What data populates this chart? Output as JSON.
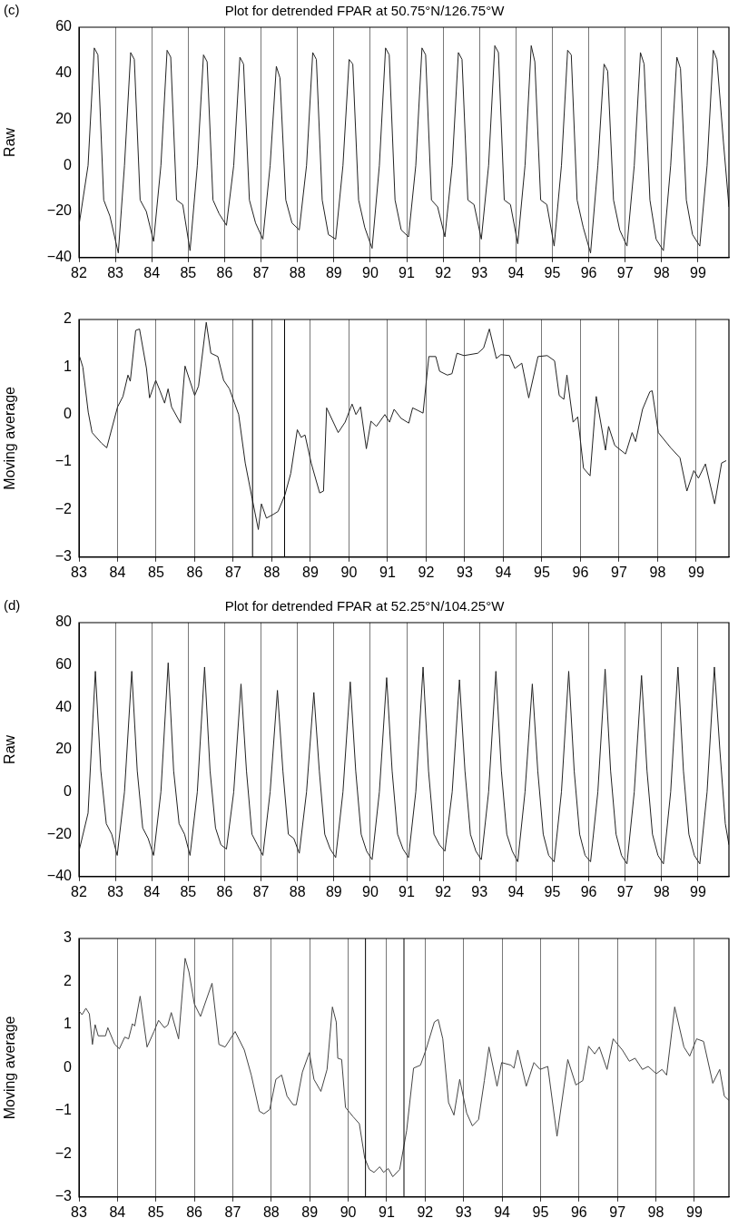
{
  "chart_data": [
    {
      "type": "line",
      "title": "Plot for detrended FPAR at 50.75°N/126.75°W",
      "ylabel": "Raw",
      "annotations": [
        "(c)"
      ],
      "xlim": [
        82,
        99.85
      ],
      "xticks": [
        82,
        83,
        84,
        85,
        86,
        87,
        88,
        89,
        90,
        91,
        92,
        93,
        94,
        95,
        96,
        97,
        98,
        99
      ],
      "ylim": [
        -40,
        60
      ],
      "yticks": [
        {
          "value": -40,
          "label": "−40"
        },
        {
          "value": -20,
          "label": "−20"
        },
        0,
        20,
        40,
        60
      ],
      "grid": "x",
      "legend": false,
      "series": [
        {
          "color": "#222222",
          "x": [
            82,
            82.25,
            82.42,
            82.52,
            82.68,
            82.85,
            83.08,
            83.25,
            83.42,
            83.52,
            83.68,
            83.85,
            84.05,
            84.25,
            84.42,
            84.52,
            84.68,
            84.85,
            85.05,
            85.25,
            85.42,
            85.52,
            85.68,
            85.85,
            86.05,
            86.25,
            86.42,
            86.52,
            86.68,
            86.85,
            87.05,
            87.25,
            87.42,
            87.52,
            87.68,
            87.85,
            88.05,
            88.25,
            88.42,
            88.52,
            88.68,
            88.85,
            89.05,
            89.25,
            89.42,
            89.52,
            89.68,
            89.85,
            90.05,
            90.25,
            90.42,
            90.52,
            90.68,
            90.85,
            91.05,
            91.25,
            91.42,
            91.52,
            91.68,
            91.85,
            92.05,
            92.25,
            92.42,
            92.52,
            92.68,
            92.85,
            93.05,
            93.25,
            93.42,
            93.52,
            93.68,
            93.85,
            94.05,
            94.25,
            94.42,
            94.52,
            94.68,
            94.85,
            95.05,
            95.25,
            95.42,
            95.52,
            95.68,
            95.85,
            96.05,
            96.25,
            96.42,
            96.52,
            96.68,
            96.85,
            97.05,
            97.25,
            97.42,
            97.52,
            97.68,
            97.85,
            98.05,
            98.25,
            98.42,
            98.52,
            98.68,
            98.85,
            99.05,
            99.25,
            99.42,
            99.52,
            99.7,
            99.85
          ],
          "values": [
            -26,
            0,
            51,
            48,
            -15,
            -22,
            -38,
            0,
            49,
            46,
            -15,
            -20,
            -33,
            0,
            50,
            47,
            -15,
            -17,
            -37,
            0,
            48,
            45,
            -15,
            -21,
            -26,
            0,
            47,
            44,
            -15,
            -25,
            -32,
            0,
            43,
            38,
            -15,
            -25,
            -28,
            0,
            49,
            46,
            -15,
            -30,
            -32,
            0,
            46,
            44,
            -15,
            -27,
            -36,
            0,
            51,
            48,
            -15,
            -28,
            -31,
            0,
            51,
            48,
            -15,
            -18,
            -31,
            0,
            49,
            46,
            -15,
            -17,
            -32,
            0,
            52,
            49,
            -15,
            -17,
            -34,
            0,
            52,
            45,
            -15,
            -17,
            -35,
            0,
            50,
            48,
            -15,
            -27,
            -38,
            0,
            44,
            41,
            -15,
            -28,
            -35,
            0,
            49,
            44,
            -15,
            -32,
            -37,
            0,
            47,
            42,
            -15,
            -30,
            -35,
            0,
            50,
            46,
            10,
            -18
          ]
        }
      ]
    },
    {
      "type": "line",
      "ylabel": "Moving average",
      "xlim": [
        83,
        99.85
      ],
      "xticks": [
        83,
        84,
        85,
        86,
        87,
        88,
        89,
        90,
        91,
        92,
        93,
        94,
        95,
        96,
        97,
        98,
        99
      ],
      "ylim": [
        -3,
        2
      ],
      "yticks": [
        {
          "value": -3,
          "label": "−3"
        },
        {
          "value": -2,
          "label": "−2"
        },
        {
          "value": -1,
          "label": "−1"
        },
        0,
        1,
        2
      ],
      "grid": "x",
      "legend": false,
      "ref_lines": [
        {
          "axis": "x",
          "value": 87.5,
          "color": "#000000"
        },
        {
          "axis": "x",
          "value": 88.33,
          "color": "#000000"
        }
      ],
      "series": [
        {
          "color": "#222222",
          "x": [
            83,
            83.1,
            83.24,
            83.34,
            83.58,
            83.72,
            84,
            84.14,
            84.27,
            84.33,
            84.47,
            84.57,
            84.75,
            84.83,
            84.99,
            85.1,
            85.22,
            85.31,
            85.4,
            85.63,
            85.75,
            86,
            86.1,
            86.3,
            86.42,
            86.6,
            86.75,
            86.9,
            87.14,
            87.31,
            87.49,
            87.65,
            87.73,
            87.86,
            88.04,
            88.16,
            88.34,
            88.49,
            88.66,
            88.76,
            88.86,
            89.02,
            89.24,
            89.34,
            89.42,
            89.72,
            89.9,
            90.08,
            90.18,
            90.3,
            90.45,
            90.57,
            90.71,
            90.93,
            91.05,
            91.17,
            91.35,
            91.55,
            91.65,
            91.8,
            91.92,
            92.07,
            92.25,
            92.35,
            92.55,
            92.67,
            92.8,
            92.98,
            93.34,
            93.49,
            93.64,
            93.82,
            93.94,
            94.16,
            94.3,
            94.48,
            94.66,
            94.9,
            95.14,
            95.33,
            95.45,
            95.57,
            95.65,
            95.81,
            95.93,
            96.08,
            96.25,
            96.41,
            96.65,
            96.73,
            96.89,
            97.17,
            97.34,
            97.43,
            97.61,
            97.8,
            97.86,
            98.02,
            98.34,
            98.58,
            98.76,
            98.94,
            99.06,
            99.24,
            99.48,
            99.66,
            99.78
          ],
          "values": [
            1.26,
            1,
            0.05,
            -0.38,
            -0.6,
            -0.7,
            0.16,
            0.38,
            0.83,
            0.7,
            1.77,
            1.8,
            0.97,
            0.35,
            0.72,
            0.5,
            0.24,
            0.54,
            0.16,
            -0.18,
            1.02,
            0.4,
            0.6,
            1.94,
            1.29,
            1.22,
            0.72,
            0.54,
            0,
            -1.02,
            -1.77,
            -2.42,
            -1.88,
            -2.18,
            -2.1,
            -2.04,
            -1.69,
            -1.24,
            -0.32,
            -0.48,
            -0.43,
            -1.02,
            -1.65,
            -1.61,
            0.14,
            -0.38,
            -0.16,
            0.22,
            0,
            0.16,
            -0.72,
            -0.14,
            -0.25,
            0,
            -0.16,
            0.11,
            -0.08,
            -0.18,
            0.14,
            0.08,
            0.03,
            1.22,
            1.22,
            0.91,
            0.83,
            0.86,
            1.29,
            1.24,
            1.29,
            1.4,
            1.8,
            1.18,
            1.26,
            1.24,
            0.97,
            1.08,
            0.35,
            1.22,
            1.24,
            1.13,
            0.4,
            0.32,
            0.83,
            -0.16,
            -0.05,
            -1.13,
            -1.29,
            0.38,
            -0.75,
            -0.25,
            -0.65,
            -0.83,
            -0.38,
            -0.57,
            0.11,
            0.48,
            0.5,
            -0.38,
            -0.7,
            -0.91,
            -1.61,
            -1.18,
            -1.34,
            -1.04,
            -1.88,
            -1.02,
            -0.97
          ]
        }
      ]
    },
    {
      "type": "line",
      "title": "Plot for detrended FPAR at 52.25°N/104.25°W",
      "ylabel": "Raw",
      "annotations": [
        "(d)"
      ],
      "xlim": [
        82,
        99.85
      ],
      "xticks": [
        82,
        83,
        84,
        85,
        86,
        87,
        88,
        89,
        90,
        91,
        92,
        93,
        94,
        95,
        96,
        97,
        98,
        99
      ],
      "ylim": [
        -40,
        80
      ],
      "yticks": [
        {
          "value": -40,
          "label": "−40"
        },
        {
          "value": -20,
          "label": "−20"
        },
        0,
        20,
        40,
        60,
        80
      ],
      "grid": "x",
      "legend": false,
      "series": [
        {
          "color": "#222222",
          "x": [
            82,
            82.25,
            82.45,
            82.6,
            82.75,
            82.9,
            83.05,
            83.25,
            83.45,
            83.6,
            83.75,
            83.9,
            84.05,
            84.25,
            84.45,
            84.6,
            84.75,
            84.9,
            85.05,
            85.25,
            85.45,
            85.6,
            85.75,
            85.9,
            86.05,
            86.25,
            86.45,
            86.6,
            86.75,
            86.9,
            87.05,
            87.25,
            87.45,
            87.6,
            87.75,
            87.9,
            88.05,
            88.25,
            88.45,
            88.6,
            88.75,
            88.9,
            89.05,
            89.25,
            89.45,
            89.6,
            89.75,
            89.9,
            90.05,
            90.25,
            90.45,
            90.6,
            90.75,
            90.9,
            91.05,
            91.25,
            91.45,
            91.6,
            91.75,
            91.9,
            92.05,
            92.25,
            92.45,
            92.6,
            92.75,
            92.9,
            93.05,
            93.25,
            93.45,
            93.6,
            93.75,
            93.9,
            94.05,
            94.25,
            94.45,
            94.6,
            94.75,
            94.9,
            95.05,
            95.25,
            95.45,
            95.6,
            95.75,
            95.9,
            96.05,
            96.25,
            96.45,
            96.6,
            96.75,
            96.9,
            97.05,
            97.25,
            97.45,
            97.6,
            97.75,
            97.9,
            98.05,
            98.25,
            98.45,
            98.6,
            98.75,
            98.9,
            99.05,
            99.25,
            99.45,
            99.6,
            99.75,
            99.85
          ],
          "values": [
            -28,
            -10,
            57,
            10,
            -15,
            -20,
            -30,
            0,
            57,
            10,
            -17,
            -22,
            -30,
            0,
            61,
            10,
            -15,
            -20,
            -30,
            0,
            59,
            10,
            -17,
            -25,
            -27,
            0,
            51,
            10,
            -20,
            -25,
            -30,
            0,
            48,
            10,
            -20,
            -22,
            -29,
            0,
            47,
            10,
            -20,
            -27,
            -31,
            0,
            52,
            10,
            -20,
            -28,
            -32,
            0,
            54,
            10,
            -20,
            -27,
            -31,
            0,
            59,
            10,
            -20,
            -25,
            -28,
            0,
            53,
            10,
            -20,
            -28,
            -32,
            0,
            57,
            10,
            -20,
            -28,
            -33,
            0,
            51,
            10,
            -20,
            -30,
            -33,
            0,
            57,
            10,
            -20,
            -30,
            -33,
            0,
            58,
            10,
            -20,
            -30,
            -34,
            0,
            55,
            10,
            -20,
            -30,
            -34,
            0,
            59,
            10,
            -20,
            -30,
            -34,
            0,
            59,
            20,
            -15,
            -25
          ]
        }
      ]
    },
    {
      "type": "line",
      "ylabel": "Moving average",
      "xlim": [
        83,
        99.9
      ],
      "xticks": [
        83,
        84,
        85,
        86,
        87,
        88,
        89,
        90,
        91,
        92,
        93,
        94,
        95,
        96,
        97,
        98,
        99
      ],
      "ylim": [
        -3,
        3
      ],
      "yticks": [
        {
          "value": -3,
          "label": "−3"
        },
        {
          "value": -2,
          "label": "−2"
        },
        {
          "value": -1,
          "label": "−1"
        },
        0,
        1,
        2,
        3
      ],
      "grid": "x",
      "legend": false,
      "ref_lines": [
        {
          "axis": "x",
          "value": 90.45,
          "color": "#000000"
        },
        {
          "axis": "x",
          "value": 91.45,
          "color": "#000000"
        }
      ],
      "series": [
        {
          "color": "#444444",
          "x": [
            83,
            83.08,
            83.18,
            83.27,
            83.35,
            83.42,
            83.5,
            83.69,
            83.75,
            83.93,
            84.05,
            84.19,
            84.29,
            84.39,
            84.45,
            84.59,
            84.77,
            84.95,
            85.07,
            85.22,
            85.31,
            85.4,
            85.59,
            85.76,
            85.86,
            86,
            86.16,
            86.46,
            86.64,
            86.8,
            87.06,
            87.3,
            87.48,
            87.69,
            87.81,
            87.96,
            88.12,
            88.27,
            88.41,
            88.57,
            88.65,
            88.81,
            88.99,
            89.11,
            89.29,
            89.45,
            89.59,
            89.69,
            89.73,
            89.83,
            89.93,
            90.13,
            90.29,
            90.43,
            90.55,
            90.67,
            90.82,
            90.92,
            91.04,
            91.16,
            91.34,
            91.52,
            91.7,
            91.88,
            92.02,
            92.24,
            92.34,
            92.46,
            92.61,
            92.75,
            92.9,
            93.08,
            93.23,
            93.39,
            93.54,
            93.66,
            93.87,
            93.99,
            94.23,
            94.31,
            94.41,
            94.63,
            94.83,
            94.99,
            95.19,
            95.43,
            95.71,
            95.92,
            96.1,
            96.25,
            96.41,
            96.53,
            96.73,
            96.89,
            97.13,
            97.31,
            97.46,
            97.65,
            97.8,
            98.01,
            98.16,
            98.28,
            98.49,
            98.73,
            98.88,
            99.06,
            99.24,
            99.48,
            99.66,
            99.78,
            99.89
          ],
          "values": [
            1.32,
            1.23,
            1.38,
            1.25,
            0.54,
            1,
            0.74,
            0.74,
            0.93,
            0.54,
            0.44,
            0.71,
            0.67,
            1.02,
            0.97,
            1.66,
            0.48,
            0.84,
            1.1,
            0.93,
            0.99,
            1.28,
            0.67,
            2.54,
            2.22,
            1.48,
            1.19,
            1.96,
            0.54,
            0.48,
            0.84,
            0.41,
            -0.17,
            -1.01,
            -1.07,
            -0.97,
            -0.27,
            -0.17,
            -0.66,
            -0.86,
            -0.86,
            -0.1,
            0.35,
            -0.27,
            -0.55,
            -0.04,
            1.41,
            1.06,
            0.22,
            0.19,
            -0.92,
            -1.14,
            -1.3,
            -2.1,
            -2.36,
            -2.43,
            -2.3,
            -2.43,
            -2.34,
            -2.53,
            -2.36,
            -1.46,
            -0.01,
            0.06,
            0.41,
            1.06,
            1.12,
            0.67,
            -0.81,
            -1.1,
            -0.27,
            -1.05,
            -1.35,
            -1.2,
            -0.3,
            0.48,
            -0.43,
            0.12,
            0.06,
            -0.01,
            0.41,
            -0.43,
            0.12,
            -0.04,
            0.03,
            -1.59,
            0.19,
            -0.4,
            -0.3,
            0.5,
            0.32,
            0.48,
            -0.04,
            0.67,
            0.41,
            0.15,
            0.22,
            -0.04,
            0.03,
            -0.14,
            -0.04,
            -0.17,
            1.41,
            0.48,
            0.27,
            0.67,
            0.61,
            -0.36,
            -0.04,
            -0.66,
            -0.75
          ]
        }
      ]
    }
  ]
}
